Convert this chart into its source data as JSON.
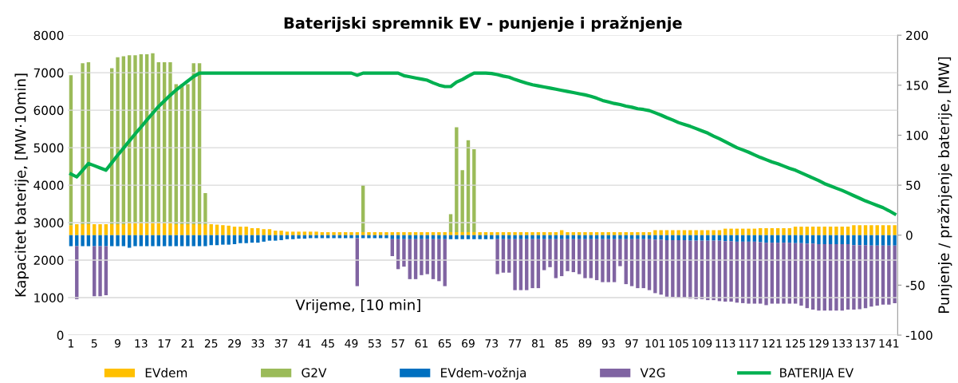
{
  "chart_data": {
    "type": "bar",
    "title": "Baterijski spremnik EV - punjenje i pražnjenje",
    "xlabel": "Vrijeme, [10 min]",
    "ylabel": "Kapacitet baterije, [MW·10min]",
    "y2label": "Punjenje / pražnjenje baterije, [MW]",
    "categories": [
      "1",
      null,
      null,
      null,
      "5",
      null,
      null,
      null,
      "9",
      null,
      null,
      null,
      "13",
      null,
      null,
      null,
      "17",
      null,
      null,
      null,
      "21",
      null,
      null,
      null,
      "25",
      null,
      null,
      null,
      "29",
      null,
      null,
      null,
      "33",
      null,
      null,
      null,
      "37",
      null,
      null,
      null,
      "41",
      null,
      null,
      null,
      "45",
      null,
      null,
      null,
      "49",
      null,
      null,
      null,
      "53",
      null,
      null,
      null,
      "57",
      null,
      null,
      null,
      "61",
      null,
      null,
      null,
      "65",
      null,
      null,
      null,
      "69",
      null,
      null,
      null,
      "73",
      null,
      null,
      null,
      "77",
      null,
      null,
      null,
      "81",
      null,
      null,
      null,
      "85",
      null,
      null,
      null,
      "89",
      null,
      null,
      null,
      "93",
      null,
      null,
      null,
      "97",
      null,
      null,
      null,
      "101",
      null,
      null,
      null,
      "105",
      null,
      null,
      null,
      "109",
      null,
      null,
      null,
      "113",
      null,
      null,
      null,
      "117",
      null,
      null,
      null,
      "121",
      null,
      null,
      null,
      "125",
      null,
      null,
      null,
      "129",
      null,
      null,
      null,
      "133",
      null,
      null,
      null,
      "137",
      null,
      null,
      null,
      "141",
      null
    ],
    "stacked": true,
    "ylim": [
      0,
      8000
    ],
    "yticks": [
      0,
      1000,
      2000,
      3000,
      4000,
      5000,
      6000,
      7000,
      8000
    ],
    "y2lim": [
      -100,
      200
    ],
    "y2ticks": [
      -100,
      -50,
      0,
      50,
      100,
      150,
      200
    ],
    "grid": "y",
    "legend": "bottom",
    "series": [
      {
        "name": "EVdem",
        "color": "#ffc000",
        "axis": "y2",
        "values": [
          10,
          11,
          11,
          11,
          11,
          11,
          11,
          11,
          11,
          11,
          12,
          12,
          12,
          12,
          12,
          12,
          12,
          12,
          11,
          11,
          11,
          11,
          11,
          11,
          11,
          10.5,
          10,
          9.5,
          8.5,
          8.5,
          8.5,
          7,
          7,
          6,
          6,
          4.5,
          4.5,
          3.5,
          3.5,
          3.5,
          3.5,
          3.5,
          3.5,
          3,
          3,
          3,
          3,
          3,
          3,
          3,
          3,
          3,
          3,
          3,
          3,
          3,
          3,
          3,
          3,
          3,
          3,
          3,
          3,
          3,
          3,
          3,
          3,
          3,
          3,
          3,
          3,
          3,
          3,
          3,
          3,
          3,
          3,
          3,
          3,
          3,
          3,
          3,
          3,
          3,
          5,
          3,
          3,
          3,
          3,
          3,
          3,
          3,
          3,
          3,
          3,
          3,
          3,
          3,
          3,
          3,
          5,
          5,
          5,
          5,
          5,
          5,
          5,
          5,
          5,
          5,
          5,
          5,
          6.5,
          6.5,
          6.5,
          6.5,
          6.5,
          6.5,
          7,
          7,
          7,
          7,
          7,
          7,
          8.5,
          8.5,
          8.5,
          8.5,
          8.5,
          8.5,
          8.5,
          8.5,
          8.5,
          8.5,
          10,
          10,
          10,
          10,
          10,
          10,
          10,
          10
        ]
      },
      {
        "name": "G2V",
        "color": "#9bbb59",
        "axis": "y2",
        "values": [
          150,
          null,
          161,
          162,
          null,
          null,
          null,
          156,
          167,
          168,
          168,
          168,
          169,
          169,
          170,
          161,
          161,
          161,
          140,
          140,
          140,
          161,
          161,
          31,
          null,
          null,
          null,
          null,
          null,
          null,
          null,
          null,
          null,
          null,
          null,
          null,
          null,
          null,
          null,
          null,
          null,
          null,
          null,
          null,
          null,
          null,
          null,
          null,
          null,
          null,
          47,
          null,
          null,
          null,
          null,
          null,
          null,
          null,
          null,
          null,
          null,
          null,
          null,
          null,
          null,
          18,
          105,
          62,
          92,
          83,
          null,
          null,
          null,
          null,
          null,
          null,
          null,
          null,
          null,
          null,
          null,
          null,
          null,
          null,
          null,
          null,
          null,
          null,
          null,
          null,
          null,
          null,
          null,
          null,
          null,
          null,
          null,
          null,
          null,
          null,
          null,
          null,
          null,
          null,
          null,
          null,
          null,
          null,
          null,
          null,
          null,
          null,
          null,
          null,
          null,
          null,
          null,
          null,
          null,
          null,
          null,
          null,
          null,
          null,
          null,
          null,
          null,
          null,
          null,
          null,
          null,
          null,
          null,
          null,
          null,
          null,
          null,
          null,
          null,
          null,
          null,
          null
        ]
      },
      {
        "name": "EVdem-vožnja",
        "color": "#0070c0",
        "axis": "y2",
        "values": [
          -11,
          -11,
          -11,
          -11,
          -11,
          -11,
          -11,
          -11,
          -11,
          -11,
          -12.5,
          -11,
          -11,
          -11,
          -11,
          -11,
          -11,
          -11,
          -11,
          -11,
          -11,
          -11,
          -11,
          -11,
          -10,
          -10,
          -9.5,
          -9.5,
          -9,
          -8,
          -8,
          -7.5,
          -7.5,
          -6.5,
          -5.5,
          -5.5,
          -5,
          -4,
          -4,
          -3.5,
          -3.5,
          -3,
          -3,
          -3,
          -3,
          -3,
          -3,
          -3,
          -3,
          -3,
          -3,
          -3,
          -3,
          -3,
          -3,
          -4,
          -4,
          -4,
          -4,
          -4,
          -4,
          -4,
          -4,
          -4,
          -4,
          -4,
          -4,
          -4,
          -4,
          -4,
          -4,
          -4,
          -4,
          -4,
          -4,
          -4,
          -4,
          -4,
          -4,
          -4,
          -4,
          -4,
          -4,
          -4,
          -4,
          -4,
          -4,
          -4,
          -4,
          -4,
          -4,
          -4,
          -4,
          -4,
          -4,
          -4,
          -4,
          -4,
          -4,
          -4,
          -4.5,
          -4.5,
          -5,
          -5,
          -5,
          -5,
          -5.5,
          -5.5,
          -5.5,
          -5.5,
          -5.5,
          -5.5,
          -6,
          -6,
          -6.5,
          -6.5,
          -6.5,
          -6.5,
          -7,
          -7.5,
          -7.5,
          -7.5,
          -7.5,
          -7.5,
          -8,
          -8,
          -8.5,
          -8.5,
          -9,
          -9,
          -9,
          -9,
          -9,
          -9,
          -10,
          -10,
          -10,
          -10.5,
          -10.5,
          -10.5,
          -10.5,
          -10.5
        ]
      },
      {
        "name": "V2G",
        "color": "#8064a2",
        "axis": "y2",
        "values": [
          null,
          -53,
          null,
          null,
          -50,
          -50,
          -49,
          null,
          null,
          null,
          null,
          null,
          null,
          null,
          null,
          null,
          null,
          null,
          null,
          null,
          null,
          null,
          null,
          null,
          null,
          null,
          null,
          null,
          null,
          null,
          null,
          null,
          null,
          null,
          null,
          null,
          null,
          null,
          null,
          null,
          null,
          null,
          null,
          null,
          null,
          null,
          null,
          null,
          null,
          -48,
          null,
          null,
          null,
          null,
          null,
          -17,
          -30,
          -27.5,
          -40,
          -40,
          -36,
          -35,
          -40,
          -42,
          -47,
          null,
          null,
          null,
          null,
          null,
          null,
          null,
          null,
          -35,
          -33.5,
          -33.5,
          -51,
          -51,
          -51,
          -49,
          -49,
          -31,
          -28,
          -39,
          -37,
          -32,
          -33,
          -35,
          -39,
          -39,
          -41,
          -43,
          -43,
          -43,
          -27,
          -45,
          -47,
          -49,
          -49,
          -51,
          -53.5,
          -55,
          -56.5,
          -57,
          -57.5,
          -57.5,
          -58,
          -58.5,
          -58.5,
          -59.5,
          -59.5,
          -60.5,
          -60.5,
          -60.5,
          -61,
          -61.5,
          -62,
          -62,
          -61.5,
          -62.5,
          -61,
          -61,
          -61,
          -61,
          -60.5,
          -62.5,
          -64.5,
          -66,
          -66.5,
          -66.5,
          -66.5,
          -66.5,
          -66.5,
          -65.5,
          -64.5,
          -64,
          -63,
          -61,
          -60,
          -59,
          -59,
          -57.5
        ]
      },
      {
        "name": "BATERIJA EV",
        "color": "#00b050",
        "type": "line",
        "values": [
          4300,
          4220,
          4400,
          4580,
          4520,
          4460,
          4400,
          4600,
          4800,
          4990,
          5180,
          5370,
          5550,
          5740,
          5920,
          6100,
          6250,
          6400,
          6540,
          6660,
          6780,
          6900,
          6990,
          6990,
          6990,
          6990,
          6990,
          6990,
          6990,
          6990,
          6990,
          6990,
          6990,
          6990,
          6990,
          6990,
          6990,
          6990,
          6990,
          6990,
          6990,
          6990,
          6990,
          6990,
          6990,
          6990,
          6990,
          6990,
          6990,
          6930,
          6990,
          6990,
          6990,
          6990,
          6990,
          6990,
          6990,
          6920,
          6890,
          6860,
          6830,
          6800,
          6730,
          6670,
          6630,
          6630,
          6750,
          6820,
          6910,
          6990,
          6990,
          6990,
          6980,
          6950,
          6910,
          6880,
          6820,
          6770,
          6720,
          6680,
          6650,
          6620,
          6590,
          6560,
          6530,
          6500,
          6470,
          6440,
          6410,
          6370,
          6320,
          6260,
          6220,
          6180,
          6150,
          6110,
          6080,
          6040,
          6020,
          5990,
          5930,
          5870,
          5800,
          5740,
          5670,
          5620,
          5570,
          5510,
          5450,
          5390,
          5310,
          5240,
          5160,
          5080,
          5000,
          4940,
          4880,
          4810,
          4740,
          4680,
          4620,
          4570,
          4510,
          4450,
          4400,
          4330,
          4260,
          4190,
          4120,
          4040,
          3980,
          3920,
          3860,
          3790,
          3720,
          3650,
          3580,
          3520,
          3460,
          3400,
          3320,
          3230
        ]
      }
    ]
  }
}
